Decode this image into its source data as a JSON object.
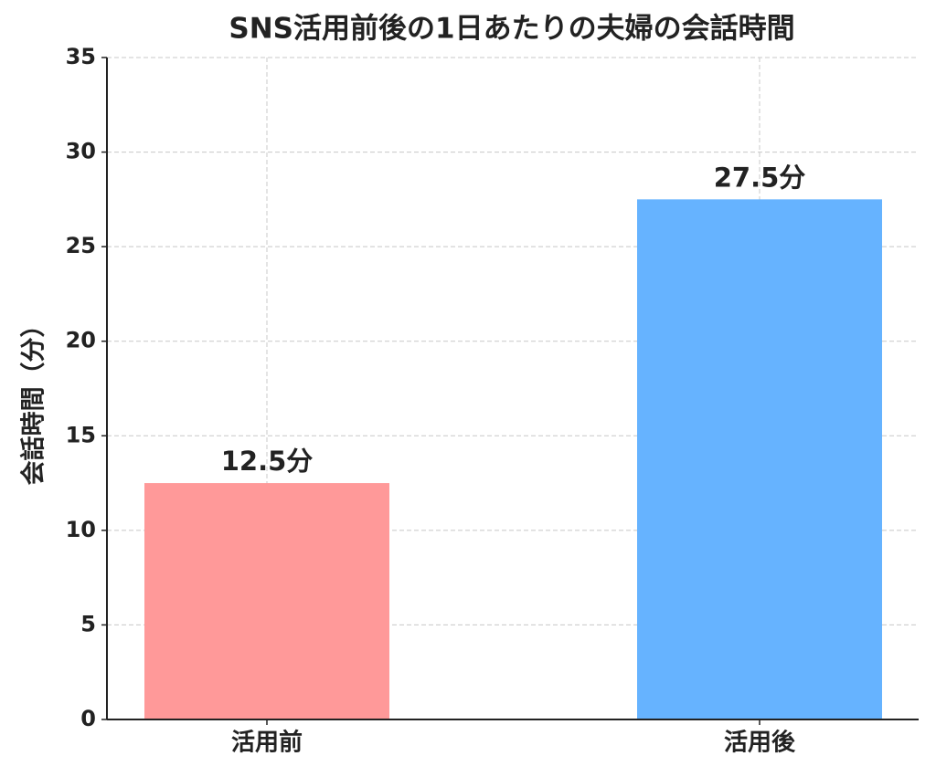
{
  "chart_data": {
    "type": "bar",
    "title": "SNS活用前後の1日あたりの夫婦の会話時間",
    "y_label": "会話時間（分）",
    "categories": [
      "活用前",
      "活用後"
    ],
    "values": [
      12.5,
      27.5
    ],
    "value_labels": [
      "12.5分",
      "27.5分"
    ],
    "colors": [
      "#ff9999",
      "#66b3ff"
    ],
    "ylim": [
      0,
      35
    ],
    "yticks": [
      0,
      5,
      10,
      15,
      20,
      25,
      30,
      35
    ],
    "grid": true
  }
}
